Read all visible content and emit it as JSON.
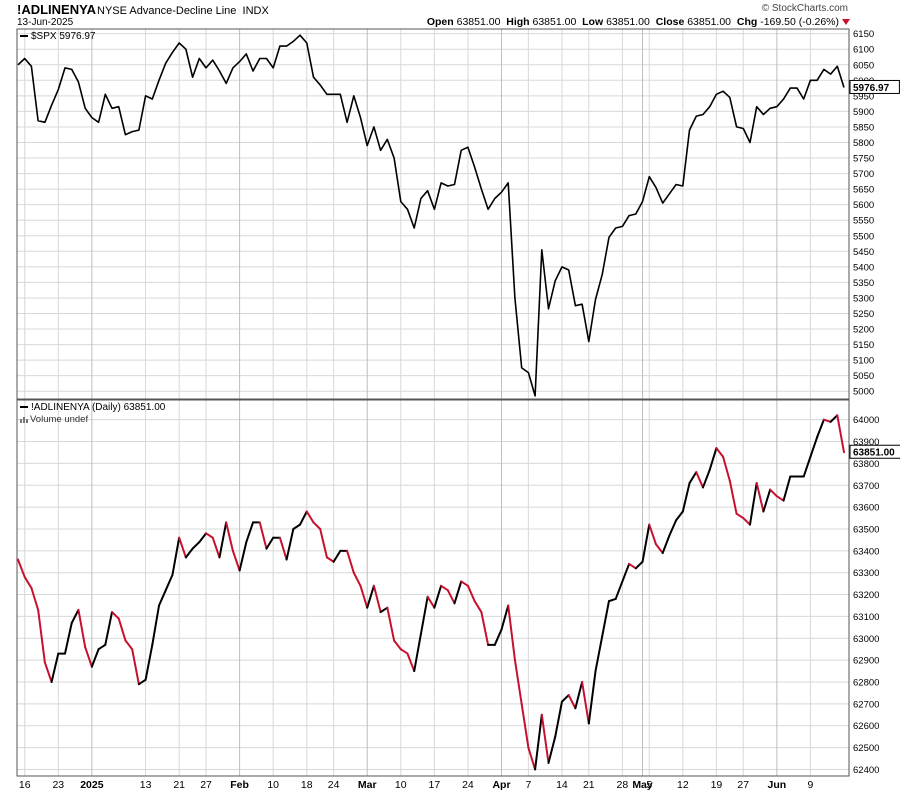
{
  "header": {
    "symbol": "!ADLINENYA",
    "name": "NYSE Advance-Decline Line",
    "exchange": "INDX",
    "date": "13-Jun-2025",
    "open_label": "Open",
    "open": "63851.00",
    "high_label": "High",
    "high": "63851.00",
    "low_label": "Low",
    "low": "63851.00",
    "close_label": "Close",
    "close": "63851.00",
    "chg_label": "Chg",
    "chg": "-169.50 (-0.26%)",
    "brand": "© StockCharts.com"
  },
  "colors": {
    "up": "#000000",
    "down": "#c8102e",
    "grid": "#d8d8d8",
    "border": "#555555"
  },
  "chart_data": [
    {
      "type": "line",
      "title": "$SPX 5976.97",
      "last_value_label": "5976.97",
      "y_ticks": [
        5000,
        5050,
        5100,
        5150,
        5200,
        5250,
        5300,
        5350,
        5400,
        5450,
        5500,
        5550,
        5600,
        5650,
        5700,
        5750,
        5800,
        5850,
        5900,
        5950,
        6000,
        6050,
        6100,
        6150
      ],
      "ylim": [
        4975,
        6165
      ],
      "series": [
        {
          "values": [
            6050,
            6070,
            6045,
            5870,
            5865,
            5920,
            5970,
            6040,
            6035,
            5995,
            5910,
            5880,
            5865,
            5955,
            5910,
            5915,
            5825,
            5835,
            5840,
            5950,
            5940,
            6000,
            6055,
            6090,
            6120,
            6100,
            6010,
            6070,
            6040,
            6065,
            6030,
            5990,
            6040,
            6060,
            6085,
            6030,
            6070,
            6070,
            6040,
            6110,
            6110,
            6125,
            6145,
            6120,
            6010,
            5985,
            5955,
            5955,
            5955,
            5865,
            5950,
            5880,
            5790,
            5850,
            5775,
            5810,
            5750,
            5610,
            5585,
            5525,
            5620,
            5645,
            5585,
            5670,
            5660,
            5665,
            5775,
            5785,
            5720,
            5650,
            5585,
            5620,
            5640,
            5670,
            5300,
            5075,
            5060,
            4985,
            5455,
            5265,
            5355,
            5400,
            5390,
            5275,
            5280,
            5160,
            5295,
            5375,
            5495,
            5525,
            5530,
            5565,
            5570,
            5610,
            5690,
            5655,
            5605,
            5635,
            5665,
            5660,
            5840,
            5885,
            5890,
            5915,
            5955,
            5965,
            5945,
            5850,
            5845,
            5800,
            5915,
            5890,
            5910,
            5915,
            5940,
            5975,
            5975,
            5940,
            6000,
            6000,
            6035,
            6020,
            6045,
            5977
          ]
        }
      ]
    },
    {
      "type": "line",
      "title": "!ADLINENYA (Daily) 63851.00",
      "subtitle": "Volume undef",
      "last_value_label": "63851.00",
      "y_ticks": [
        62400,
        62500,
        62600,
        62700,
        62800,
        62900,
        63000,
        63100,
        63200,
        63300,
        63400,
        63500,
        63600,
        63700,
        63800,
        63900,
        64000
      ],
      "ylim": [
        62370,
        64090
      ],
      "series": [
        {
          "values": [
            63360,
            63280,
            63230,
            63130,
            62890,
            62800,
            62930,
            62930,
            63070,
            63130,
            62960,
            62870,
            62950,
            62970,
            63120,
            63090,
            62990,
            62950,
            62790,
            62810,
            62970,
            63150,
            63220,
            63290,
            63460,
            63370,
            63410,
            63440,
            63480,
            63460,
            63370,
            63530,
            63400,
            63310,
            63440,
            63530,
            63530,
            63410,
            63460,
            63460,
            63360,
            63500,
            63520,
            63580,
            63530,
            63500,
            63370,
            63350,
            63400,
            63400,
            63300,
            63240,
            63140,
            63240,
            63120,
            63140,
            62990,
            62950,
            62930,
            62850,
            63020,
            63190,
            63140,
            63240,
            63220,
            63160,
            63260,
            63240,
            63170,
            63120,
            62970,
            62970,
            63040,
            63150,
            62900,
            62700,
            62500,
            62400,
            62650,
            62430,
            62550,
            62710,
            62740,
            62680,
            62800,
            62610,
            62850,
            63010,
            63170,
            63180,
            63260,
            63340,
            63320,
            63350,
            63520,
            63430,
            63390,
            63470,
            63540,
            63580,
            63710,
            63760,
            63690,
            63770,
            63870,
            63830,
            63720,
            63570,
            63550,
            63520,
            63710,
            63580,
            63680,
            63650,
            63630,
            63740,
            63740,
            63740,
            63830,
            63920,
            64000,
            63990,
            64020,
            63851
          ]
        }
      ]
    }
  ],
  "x_axis": {
    "ticks": [
      {
        "label": "16",
        "i": 1,
        "bold": false
      },
      {
        "label": "23",
        "i": 6,
        "bold": false
      },
      {
        "label": "2025",
        "i": 11,
        "bold": true
      },
      {
        "label": "13",
        "i": 19,
        "bold": false
      },
      {
        "label": "21",
        "i": 24,
        "bold": false
      },
      {
        "label": "27",
        "i": 28,
        "bold": false
      },
      {
        "label": "Feb",
        "i": 33,
        "bold": true
      },
      {
        "label": "10",
        "i": 38,
        "bold": false
      },
      {
        "label": "18",
        "i": 43,
        "bold": false
      },
      {
        "label": "24",
        "i": 47,
        "bold": false
      },
      {
        "label": "Mar",
        "i": 52,
        "bold": true
      },
      {
        "label": "10",
        "i": 57,
        "bold": false
      },
      {
        "label": "17",
        "i": 62,
        "bold": false
      },
      {
        "label": "24",
        "i": 67,
        "bold": false
      },
      {
        "label": "Apr",
        "i": 72,
        "bold": true
      },
      {
        "label": "7",
        "i": 76,
        "bold": false
      },
      {
        "label": "14",
        "i": 81,
        "bold": false
      },
      {
        "label": "21",
        "i": 85,
        "bold": false
      },
      {
        "label": "28",
        "i": 90,
        "bold": false
      },
      {
        "label": "May",
        "i": 93,
        "bold": true
      },
      {
        "label": "5",
        "i": 94,
        "bold": false
      },
      {
        "label": "12",
        "i": 99,
        "bold": false
      },
      {
        "label": "19",
        "i": 104,
        "bold": false
      },
      {
        "label": "27",
        "i": 108,
        "bold": false
      },
      {
        "label": "Jun",
        "i": 113,
        "bold": true
      },
      {
        "label": "9",
        "i": 118,
        "bold": false
      }
    ]
  }
}
